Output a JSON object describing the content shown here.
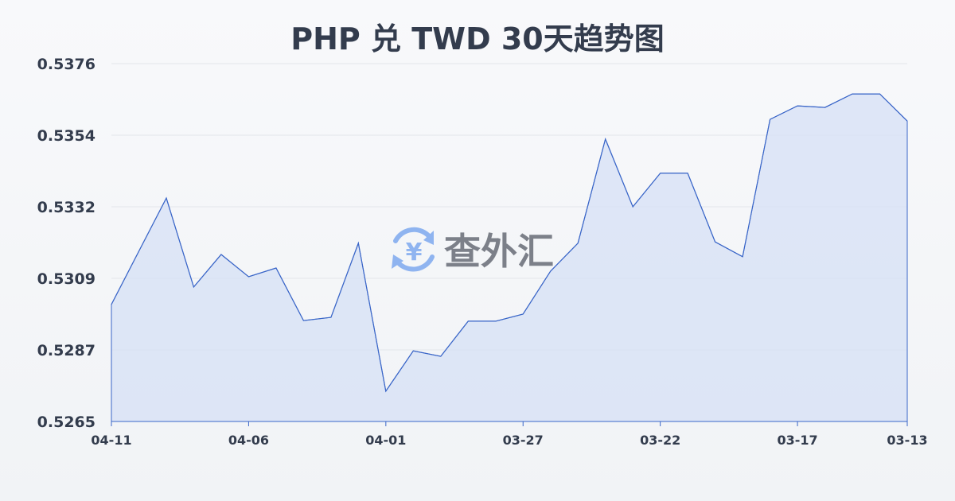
{
  "chart_data": {
    "type": "area",
    "title": "PHP 兑 TWD 30天趋势图",
    "xlabel": "",
    "ylabel": "",
    "ylim": [
      0.5265,
      0.5376
    ],
    "y_ticks": [
      "0.5376",
      "0.5354",
      "0.5332",
      "0.5309",
      "0.5287",
      "0.5265"
    ],
    "x_tick_labels": [
      "04-11",
      "04-06",
      "04-01",
      "03-27",
      "03-22",
      "03-17",
      "03-13"
    ],
    "x_tick_indices": [
      0,
      5,
      10,
      15,
      20,
      25,
      29
    ],
    "grid": true,
    "line_color": "#3a66c8",
    "fill_color": "#d6e0f5",
    "values": [
      0.53013,
      0.53178,
      0.53343,
      0.53067,
      0.53168,
      0.53099,
      0.53126,
      0.52963,
      0.52973,
      0.53203,
      0.52744,
      0.52869,
      0.52852,
      0.52961,
      0.52961,
      0.52983,
      0.53116,
      0.53203,
      0.53526,
      0.53316,
      0.5342,
      0.5342,
      0.53207,
      0.53161,
      0.53587,
      0.53629,
      0.53624,
      0.53666,
      0.53666,
      0.53582
    ]
  },
  "watermark": {
    "text": "查外汇",
    "icon": "yen-exchange-icon",
    "icon_glyph": "¥",
    "color": "#8fb4f0"
  }
}
